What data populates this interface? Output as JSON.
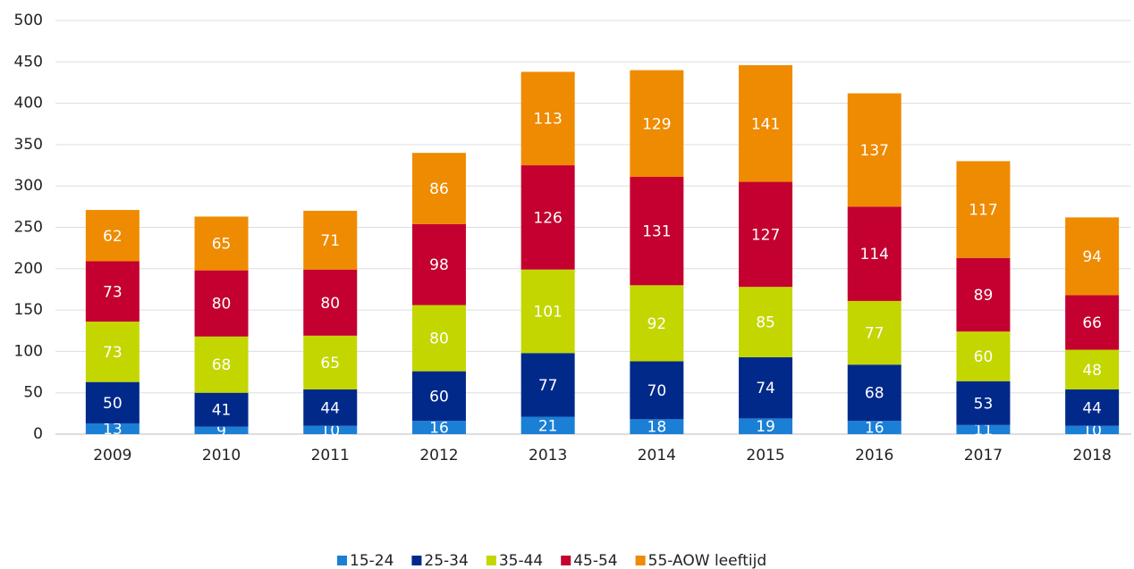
{
  "chart_data": {
    "type": "stacked_bar",
    "categories": [
      "2009",
      "2010",
      "2011",
      "2012",
      "2013",
      "2014",
      "2015",
      "2016",
      "2017",
      "2018"
    ],
    "series": [
      {
        "name": "15-24",
        "color": "#1b7fd6",
        "values": [
          13,
          9,
          10,
          16,
          21,
          18,
          19,
          16,
          11,
          10
        ]
      },
      {
        "name": "25-34",
        "color": "#00298a",
        "values": [
          50,
          41,
          44,
          60,
          77,
          70,
          74,
          68,
          53,
          44
        ]
      },
      {
        "name": "35-44",
        "color": "#c3d600",
        "values": [
          73,
          68,
          65,
          80,
          101,
          92,
          85,
          77,
          60,
          48
        ]
      },
      {
        "name": "45-54",
        "color": "#c3002f",
        "values": [
          73,
          80,
          80,
          98,
          126,
          131,
          127,
          114,
          89,
          66
        ]
      },
      {
        "name": "55-AOW leeftijd",
        "color": "#ef8b00",
        "values": [
          62,
          65,
          71,
          86,
          113,
          129,
          141,
          137,
          117,
          94
        ]
      }
    ],
    "ylim": [
      0,
      500
    ],
    "yticks": [
      0,
      50,
      100,
      150,
      200,
      250,
      300,
      350,
      400,
      450,
      500
    ],
    "grid": true,
    "legend": "bottom"
  }
}
